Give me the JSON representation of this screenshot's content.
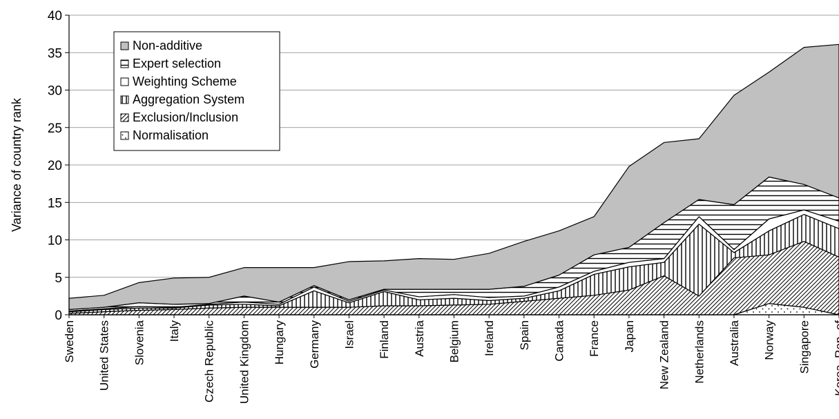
{
  "chart_data": {
    "type": "area",
    "stacked": true,
    "title": "",
    "xlabel": "",
    "ylabel": "Variance of country rank",
    "ylim": [
      0,
      40
    ],
    "yticks": [
      0,
      5,
      10,
      15,
      20,
      25,
      30,
      35,
      40
    ],
    "grid": true,
    "legend_position": "top-left",
    "categories": [
      "Sweden",
      "United States",
      "Slovenia",
      "Italy",
      "Czech Republic",
      "United Kingdom",
      "Hungary",
      "Germany",
      "Israel",
      "Finland",
      "Austria",
      "Belgium",
      "Ireland",
      "Spain",
      "Canada",
      "France",
      "Japan",
      "New Zealand",
      "Netherlands",
      "Australia",
      "Norway",
      "Singapore",
      "Korea, Rep. of"
    ],
    "series": [
      {
        "name": "Normalisation",
        "pattern": "dots",
        "color": "#ffffff",
        "values": [
          0.0,
          0.0,
          0.0,
          0.0,
          0.0,
          0.0,
          0.0,
          0.0,
          0.0,
          0.0,
          0.0,
          0.0,
          0.0,
          0.0,
          0.0,
          0.0,
          0.0,
          0.0,
          0.0,
          0.0,
          1.5,
          1.0,
          0.0
        ]
      },
      {
        "name": "Exclusion/Inclusion",
        "pattern": "diagonal",
        "color": "#ffffff",
        "values": [
          0.2,
          0.4,
          0.6,
          0.7,
          0.9,
          1.0,
          1.0,
          1.0,
          1.0,
          1.2,
          1.2,
          1.3,
          1.4,
          1.8,
          2.2,
          2.6,
          3.3,
          5.2,
          2.5,
          7.6,
          6.5,
          8.8,
          7.7
        ]
      },
      {
        "name": "Aggregation System",
        "pattern": "vertical",
        "color": "#ffffff",
        "values": [
          0.2,
          0.3,
          0.3,
          0.2,
          0.4,
          0.4,
          0.2,
          2.2,
          0.6,
          1.9,
          0.8,
          0.9,
          0.5,
          0.4,
          1.0,
          2.8,
          3.1,
          1.8,
          9.6,
          0.7,
          3.2,
          3.6,
          3.8
        ]
      },
      {
        "name": "Weighting Scheme",
        "pattern": "solid",
        "color": "#ffffff",
        "values": [
          0.1,
          0.1,
          0.2,
          0.1,
          0.1,
          0.3,
          0.2,
          0.5,
          0.2,
          0.2,
          0.4,
          0.5,
          0.4,
          0.3,
          0.5,
          0.4,
          0.6,
          0.5,
          1.0,
          0.4,
          1.6,
          0.6,
          1.0
        ]
      },
      {
        "name": "Expert selection",
        "pattern": "horizontal",
        "color": "#ffffff",
        "values": [
          0.2,
          0.2,
          0.5,
          0.4,
          0.1,
          0.8,
          0.3,
          0.2,
          0.2,
          0.1,
          1.0,
          0.7,
          1.1,
          1.3,
          1.6,
          2.2,
          2.0,
          4.8,
          2.3,
          6.0,
          5.6,
          3.4,
          3.1
        ]
      },
      {
        "name": "Non-additive",
        "pattern": "gray",
        "color": "#c0c0c0",
        "values": [
          1.5,
          1.6,
          2.7,
          3.5,
          3.5,
          3.8,
          4.6,
          2.4,
          5.1,
          3.8,
          4.1,
          4.0,
          4.8,
          6.0,
          5.9,
          5.1,
          10.8,
          10.7,
          8.1,
          14.6,
          14.0,
          18.3,
          20.5
        ]
      }
    ]
  }
}
